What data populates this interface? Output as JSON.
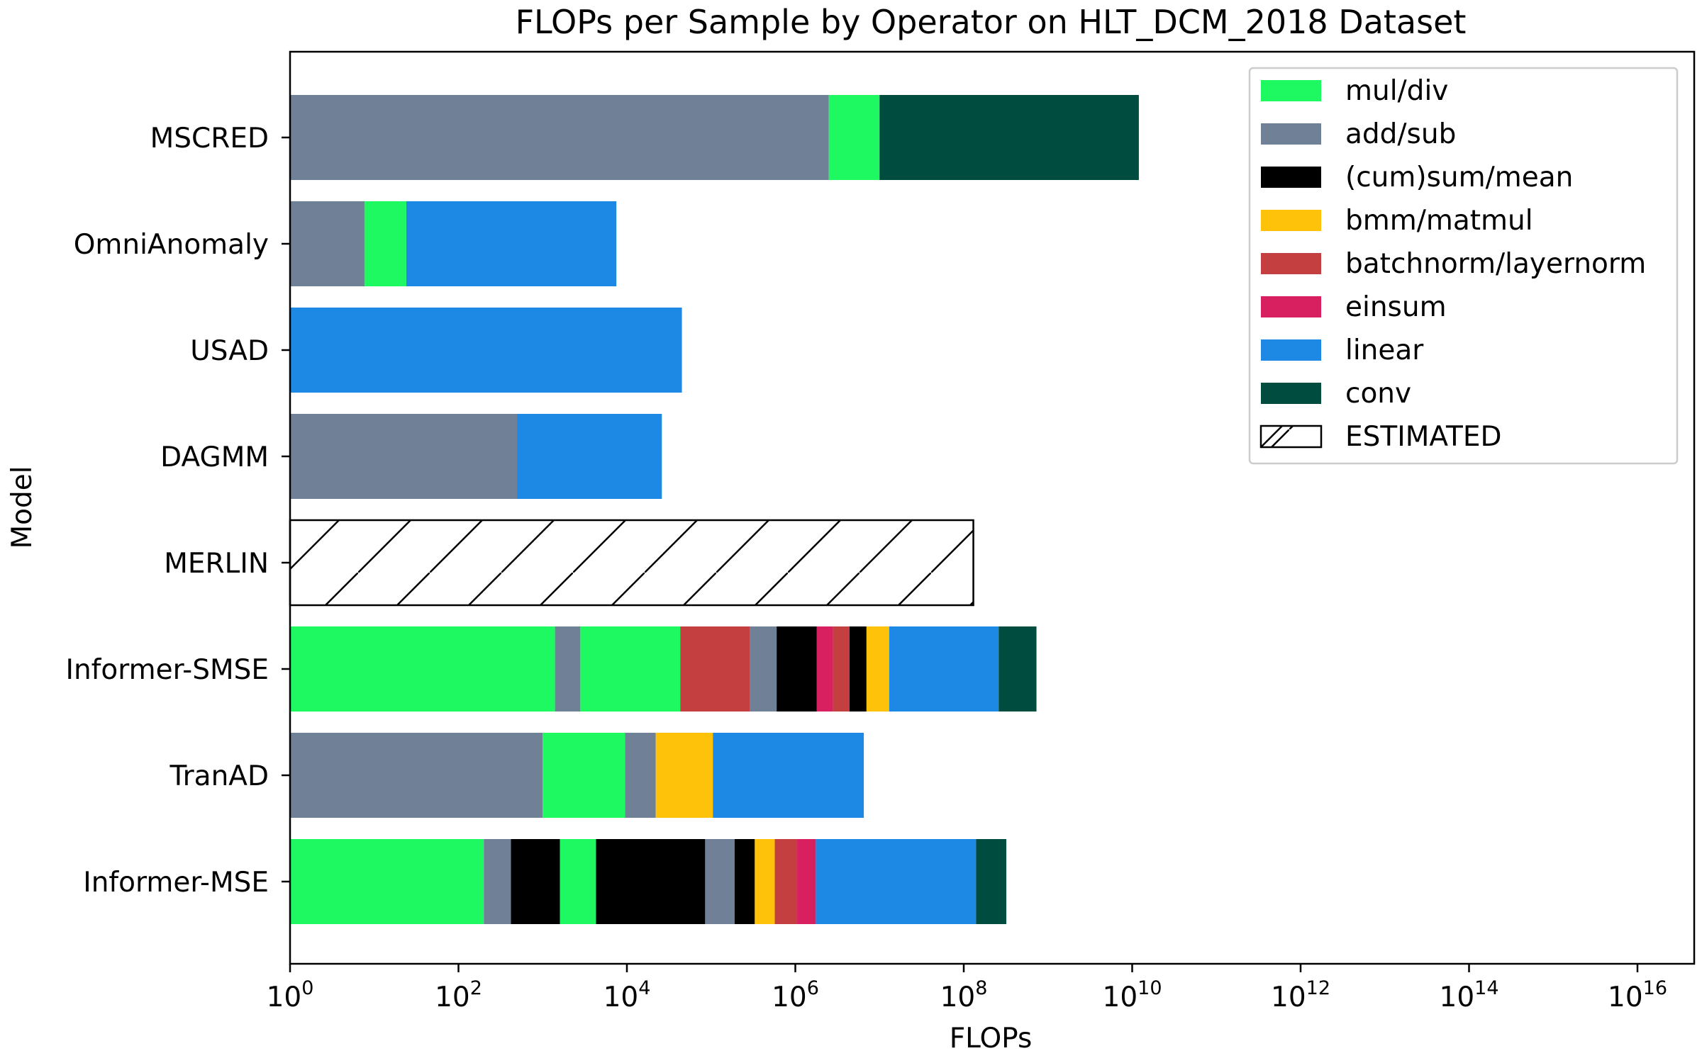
{
  "chart_data": {
    "type": "bar",
    "orientation": "horizontal",
    "stacked": true,
    "title": "FLOPs per Sample by Operator on HLT_DCM_2018 Dataset",
    "xlabel": "FLOPs",
    "ylabel": "Model",
    "xscale": "log",
    "xlim": [
      1,
      1e+16
    ],
    "x_tick_labels": [
      "10^0",
      "10^2",
      "10^4",
      "10^6",
      "10^8",
      "10^10",
      "10^12",
      "10^14",
      "10^16"
    ],
    "grid": false,
    "legend_position": "top-right",
    "categories": [
      "MSCRED",
      "OmniAnomaly",
      "USAD",
      "DAGMM",
      "MERLIN",
      "Informer-SMSE",
      "TranAD",
      "Informer-MSE"
    ],
    "legend": [
      {
        "label": "mul/div",
        "color": "#1ef962"
      },
      {
        "label": "add/sub",
        "color": "#708096"
      },
      {
        "label": "(cum)sum/mean",
        "color": "#000000"
      },
      {
        "label": "bmm/matmul",
        "color": "#ffc20a"
      },
      {
        "label": "batchnorm/layernorm",
        "color": "#c44040"
      },
      {
        "label": "einsum",
        "color": "#d81f5f"
      },
      {
        "label": "linear",
        "color": "#1e88e5"
      },
      {
        "label": "conv",
        "color": "#004d40"
      },
      {
        "label": "ESTIMATED",
        "color": "#ffffff",
        "hatch": true
      }
    ],
    "note": "Bars are stacked on a log axis; each segment is listed by the cumulative FLOPs value at its right edge.",
    "bars": [
      {
        "model": "MSCRED",
        "segments": [
          {
            "op": "add/sub",
            "end": 2500000.0
          },
          {
            "op": "mul/div",
            "end": 10000000.0
          },
          {
            "op": "conv",
            "end": 12000000000.0
          }
        ]
      },
      {
        "model": "OmniAnomaly",
        "segments": [
          {
            "op": "add/sub",
            "end": 7.7
          },
          {
            "op": "mul/div",
            "end": 24
          },
          {
            "op": "linear",
            "end": 7500.0
          }
        ]
      },
      {
        "model": "USAD",
        "segments": [
          {
            "op": "linear",
            "end": 45000.0
          }
        ]
      },
      {
        "model": "DAGMM",
        "segments": [
          {
            "op": "add/sub",
            "end": 500
          },
          {
            "op": "linear",
            "end": 26000.0
          }
        ]
      },
      {
        "model": "MERLIN",
        "estimated": true,
        "segments": [
          {
            "op": "ESTIMATED",
            "end": 130000000.0
          }
        ]
      },
      {
        "model": "Informer-SMSE",
        "segments": [
          {
            "op": "mul/div",
            "end": 1400.0
          },
          {
            "op": "add/sub",
            "end": 2800.0
          },
          {
            "op": "mul/div",
            "end": 43000.0
          },
          {
            "op": "batchnorm/layernorm",
            "end": 290000.0
          },
          {
            "op": "add/sub",
            "end": 600000.0
          },
          {
            "op": "(cum)sum/mean",
            "end": 1800000.0
          },
          {
            "op": "einsum",
            "end": 2800000.0
          },
          {
            "op": "batchnorm/layernorm",
            "end": 4400000.0
          },
          {
            "op": "(cum)sum/mean",
            "end": 7000000.0
          },
          {
            "op": "bmm/matmul",
            "end": 13000000.0
          },
          {
            "op": "linear",
            "end": 260000000.0
          },
          {
            "op": "conv",
            "end": 730000000.0
          }
        ]
      },
      {
        "model": "TranAD",
        "segments": [
          {
            "op": "add/sub",
            "end": 1000.0
          },
          {
            "op": "mul/div",
            "end": 9500.0
          },
          {
            "op": "add/sub",
            "end": 22000.0
          },
          {
            "op": "bmm/matmul",
            "end": 105000.0
          },
          {
            "op": "linear",
            "end": 6500000.0
          }
        ]
      },
      {
        "model": "Informer-MSE",
        "segments": [
          {
            "op": "mul/div",
            "end": 200
          },
          {
            "op": "add/sub",
            "end": 420
          },
          {
            "op": "(cum)sum/mean",
            "end": 1600.0
          },
          {
            "op": "mul/div",
            "end": 4300.0
          },
          {
            "op": "(cum)sum/mean",
            "end": 85000.0
          },
          {
            "op": "add/sub",
            "end": 190000.0
          },
          {
            "op": "(cum)sum/mean",
            "end": 330000.0
          },
          {
            "op": "bmm/matmul",
            "end": 570000.0
          },
          {
            "op": "batchnorm/layernorm",
            "end": 1050000.0
          },
          {
            "op": "einsum",
            "end": 1750000.0
          },
          {
            "op": "linear",
            "end": 140000000.0
          },
          {
            "op": "conv",
            "end": 320000000.0
          }
        ]
      }
    ]
  }
}
